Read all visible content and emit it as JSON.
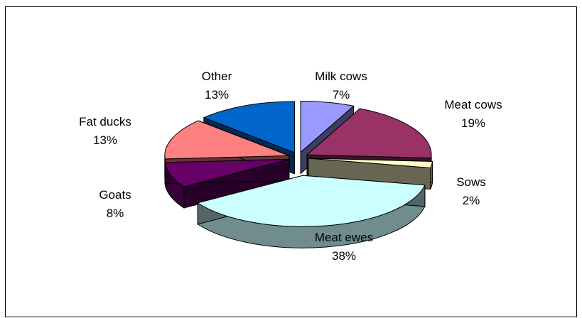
{
  "chart_data": {
    "type": "pie",
    "title": "",
    "style": "3d-exploded",
    "legend": "none",
    "slices": [
      {
        "label": "Milk cows",
        "value": 7,
        "value_label": "7%",
        "color": "#9999ff"
      },
      {
        "label": "Meat cows",
        "value": 19,
        "value_label": "19%",
        "color": "#993366"
      },
      {
        "label": "Sows",
        "value": 2,
        "value_label": "2%",
        "color": "#ffffcc"
      },
      {
        "label": "Meat ewes",
        "value": 38,
        "value_label": "38%",
        "color": "#ccffff"
      },
      {
        "label": "Goats",
        "value": 8,
        "value_label": "8%",
        "color": "#660066"
      },
      {
        "label": "Fat ducks",
        "value": 13,
        "value_label": "13%",
        "color": "#ff8080"
      },
      {
        "label": "Other",
        "value": 13,
        "value_label": "13%",
        "color": "#0066cc"
      }
    ]
  }
}
